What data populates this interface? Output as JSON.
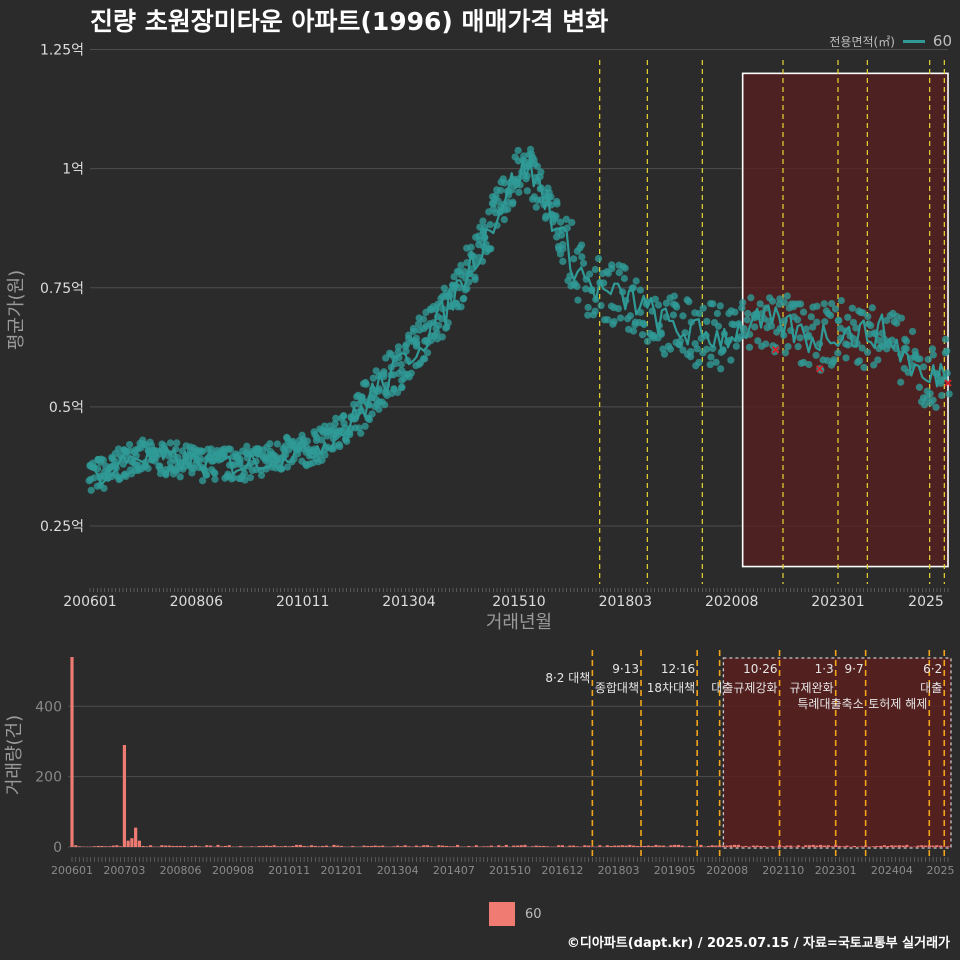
{
  "title": "진량 초원장미타운 아파트(1996) 매매가격 변화",
  "footer": "©디아파트(dapt.kr) / 2025.07.15 / 자료=국토교통부 실거래가",
  "colors": {
    "series": "#2f9a96",
    "bar": "#f07b72",
    "policy_line": "#e8d630",
    "policy_line_bottom": "#f2a51a",
    "highlight_fill": "#5a1f1f",
    "marker": "#d1232a"
  },
  "chart_data": [
    {
      "type": "line",
      "ylabel": "평균가(원)",
      "xlabel": "거래년월",
      "legend": {
        "title": "전용면적(㎡)",
        "entries": [
          "60"
        ],
        "position": "top-right"
      },
      "y_ticks": [
        "0.25억",
        "0.5억",
        "0.75억",
        "1억",
        "1.25억"
      ],
      "y_tick_values": [
        0.25,
        0.5,
        0.75,
        1.0,
        1.25
      ],
      "ylim": [
        0.12,
        1.27
      ],
      "x_ticks": [
        "200601",
        "200806",
        "201011",
        "201304",
        "201510",
        "201803",
        "202008",
        "202301",
        "2025"
      ],
      "x_range": [
        "2006-01",
        "2025-07"
      ],
      "series": [
        {
          "name": "60",
          "unit": "억",
          "points": [
            [
              "2006-01",
              0.36
            ],
            [
              "2006-06",
              0.36
            ],
            [
              "2007-01",
              0.4
            ],
            [
              "2007-06",
              0.39
            ],
            [
              "2008-01",
              0.39
            ],
            [
              "2008-06",
              0.38
            ],
            [
              "2009-01",
              0.38
            ],
            [
              "2009-06",
              0.38
            ],
            [
              "2010-01",
              0.39
            ],
            [
              "2010-06",
              0.4
            ],
            [
              "2011-01",
              0.41
            ],
            [
              "2011-06",
              0.43
            ],
            [
              "2012-01",
              0.47
            ],
            [
              "2012-06",
              0.53
            ],
            [
              "2013-01",
              0.58
            ],
            [
              "2013-06",
              0.63
            ],
            [
              "2014-01",
              0.69
            ],
            [
              "2014-06",
              0.76
            ],
            [
              "2015-01",
              0.86
            ],
            [
              "2015-06",
              0.94
            ],
            [
              "2015-10",
              0.99
            ],
            [
              "2016-01",
              1.0
            ],
            [
              "2016-06",
              0.92
            ],
            [
              "2017-01",
              0.8
            ],
            [
              "2017-06",
              0.75
            ],
            [
              "2018-01",
              0.73
            ],
            [
              "2018-06",
              0.72
            ],
            [
              "2019-01",
              0.68
            ],
            [
              "2019-06",
              0.66
            ],
            [
              "2020-01",
              0.65
            ],
            [
              "2020-06",
              0.65
            ],
            [
              "2021-01",
              0.67
            ],
            [
              "2021-06",
              0.68
            ],
            [
              "2022-01",
              0.66
            ],
            [
              "2022-06",
              0.64
            ],
            [
              "2023-01",
              0.66
            ],
            [
              "2023-06",
              0.65
            ],
            [
              "2024-01",
              0.66
            ],
            [
              "2024-06",
              0.62
            ],
            [
              "2025-01",
              0.55
            ],
            [
              "2025-06",
              0.58
            ]
          ]
        }
      ],
      "policy_dates": [
        "2017-08",
        "2018-09",
        "2019-12",
        "2021-10",
        "2023-01",
        "2023-09",
        "2025-02",
        "2025-06"
      ],
      "highlight_range": [
        "2020-11",
        "2025-07"
      ],
      "markers": [
        [
          "2021-08",
          0.62
        ],
        [
          "2022-08",
          0.58
        ],
        [
          "2025-07",
          0.55
        ]
      ]
    },
    {
      "type": "bar",
      "ylabel": "거래량(건)",
      "y_ticks": [
        "0",
        "200",
        "400"
      ],
      "y_tick_values": [
        0,
        200,
        400
      ],
      "ylim": [
        0,
        560
      ],
      "x_ticks": [
        "200601",
        "200703",
        "200806",
        "200908",
        "201011",
        "201201",
        "201304",
        "201407",
        "201510",
        "201612",
        "201803",
        "201905",
        "202008",
        "202110",
        "202301",
        "202404",
        "2025"
      ],
      "legend": {
        "entries": [
          "60"
        ],
        "position": "bottom"
      },
      "spikes": [
        [
          "2006-01",
          540
        ],
        [
          "2007-03",
          290
        ],
        [
          "2007-04",
          18
        ],
        [
          "2007-05",
          25
        ],
        [
          "2007-06",
          55
        ],
        [
          "2007-07",
          18
        ]
      ],
      "baseline_monthly": 3,
      "policies": [
        {
          "date": "2017-08",
          "label": "8·2 대책"
        },
        {
          "date": "2018-09",
          "label": "9·13",
          "label2": "종합대책"
        },
        {
          "date": "2019-12",
          "label": "12·16",
          "label2": "18차대책"
        },
        {
          "date": "2020-06",
          "label": ""
        },
        {
          "date": "2021-10",
          "label": "10·26",
          "label2": "대출규제강화"
        },
        {
          "date": "2023-01",
          "label": "1·3",
          "label2": "규제완화"
        },
        {
          "date": "2023-09",
          "label": "9·7",
          "label2": "특례대출축소"
        },
        {
          "date": "2025-02",
          "label": "",
          "label2": "토허제 해제"
        },
        {
          "date": "2025-06",
          "label": "6·2",
          "label2": "대출"
        }
      ]
    }
  ]
}
